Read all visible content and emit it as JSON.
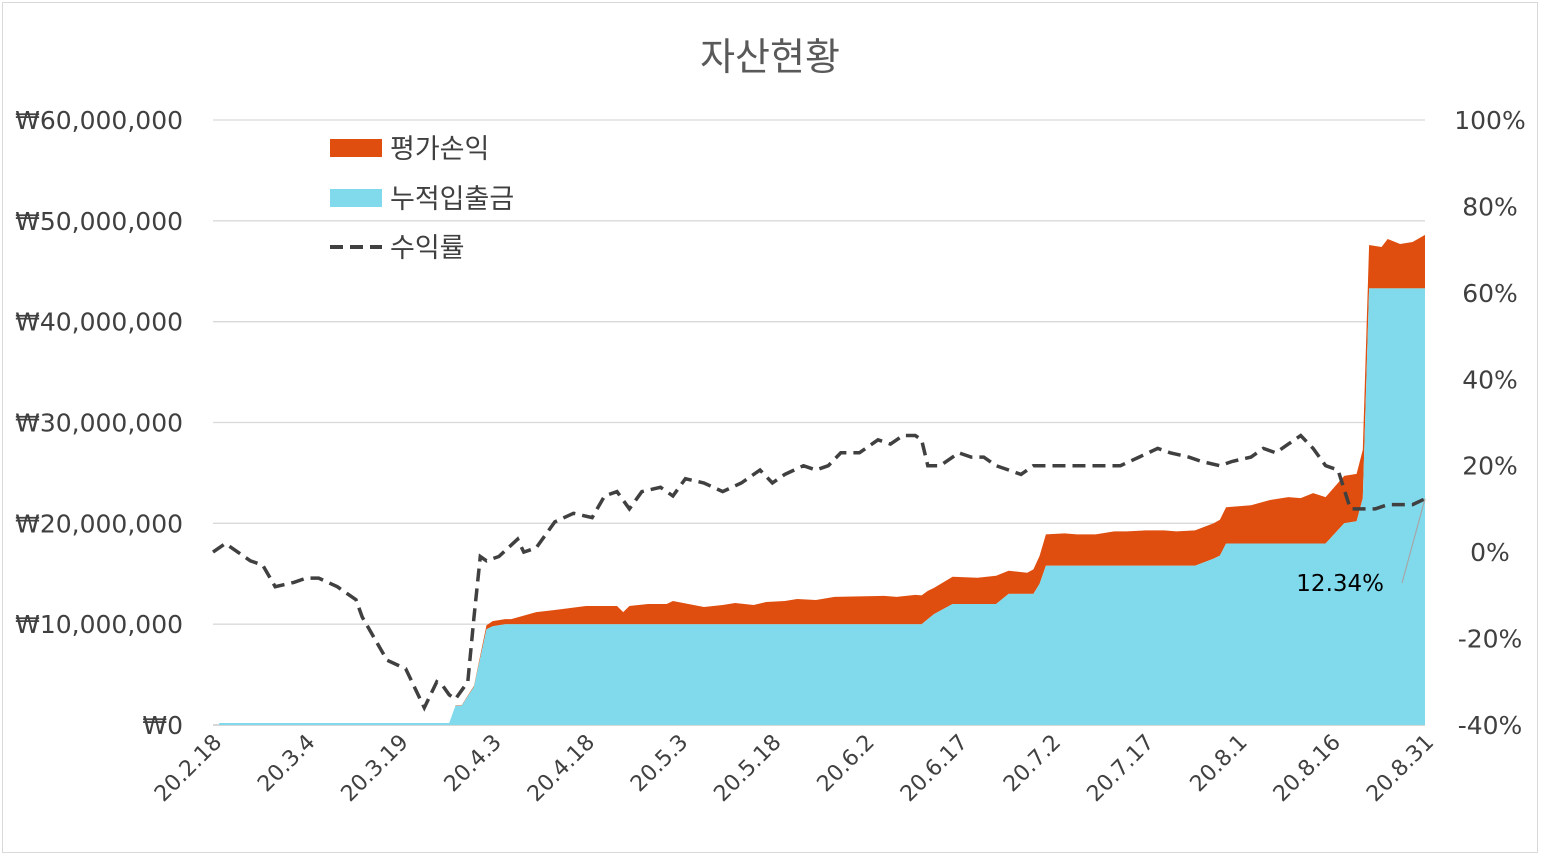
{
  "chart_data": {
    "type": "area",
    "title": "자산현황",
    "colors": {
      "profit": "#E04E0F",
      "deposit": "#80DAEC",
      "return": "#404040"
    },
    "legend": {
      "placement": "top-left",
      "entries": [
        "평가손익",
        "누적입출금",
        "수익률"
      ]
    },
    "y_left": {
      "range": [
        0,
        60000000
      ],
      "ticks": [
        "₩0",
        "₩10,000,000",
        "₩20,000,000",
        "₩30,000,000",
        "₩40,000,000",
        "₩50,000,000",
        "₩60,000,000"
      ]
    },
    "y_right": {
      "range": [
        -40,
        100
      ],
      "ticks": [
        "-40%",
        "-20%",
        "0%",
        "20%",
        "40%",
        "60%",
        "80%",
        "100%"
      ]
    },
    "x_tick_labels": [
      "20.2.18",
      "20.3.4",
      "20.3.19",
      "20.4.3",
      "20.4.18",
      "20.5.3",
      "20.5.18",
      "20.6.2",
      "20.6.17",
      "20.7.2",
      "20.7.17",
      "20.8.1",
      "20.8.16",
      "20.8.31"
    ],
    "x_range": [
      "2020-02-18",
      "2020-08-31"
    ],
    "annotation": {
      "text": "12.34%",
      "date": "2020-08-31",
      "value": 12.34
    },
    "series": [
      {
        "name": "누적입출금",
        "points": [
          [
            "2020-02-19",
            200000
          ],
          [
            "2020-03-27",
            200000
          ],
          [
            "2020-03-28",
            1900000
          ],
          [
            "2020-03-29",
            1900000
          ],
          [
            "2020-03-31",
            3800000
          ],
          [
            "2020-04-02",
            9500000
          ],
          [
            "2020-04-03",
            9800000
          ],
          [
            "2020-04-05",
            10000000
          ],
          [
            "2020-06-11",
            10000000
          ],
          [
            "2020-06-12",
            10500000
          ],
          [
            "2020-06-13",
            11000000
          ],
          [
            "2020-06-16",
            12000000
          ],
          [
            "2020-06-23",
            12000000
          ],
          [
            "2020-06-25",
            13000000
          ],
          [
            "2020-06-29",
            13000000
          ],
          [
            "2020-06-30",
            14000000
          ],
          [
            "2020-07-01",
            15800000
          ],
          [
            "2020-07-25",
            15800000
          ],
          [
            "2020-07-28",
            16500000
          ],
          [
            "2020-07-29",
            16800000
          ],
          [
            "2020-07-30",
            18000000
          ],
          [
            "2020-08-15",
            18000000
          ],
          [
            "2020-08-18",
            20000000
          ],
          [
            "2020-08-20",
            20200000
          ],
          [
            "2020-08-21",
            22500000
          ],
          [
            "2020-08-22",
            43300000
          ],
          [
            "2020-08-31",
            43300000
          ]
        ]
      },
      {
        "name": "평가손익",
        "points": [
          [
            "2020-03-28",
            50000
          ],
          [
            "2020-03-31",
            100000
          ],
          [
            "2020-04-02",
            400000
          ],
          [
            "2020-04-03",
            500000
          ],
          [
            "2020-04-06",
            500000
          ],
          [
            "2020-04-10",
            1200000
          ],
          [
            "2020-04-13",
            1400000
          ],
          [
            "2020-04-18",
            1800000
          ],
          [
            "2020-04-23",
            1800000
          ],
          [
            "2020-04-24",
            1200000
          ],
          [
            "2020-04-25",
            1800000
          ],
          [
            "2020-04-28",
            2000000
          ],
          [
            "2020-05-01",
            2000000
          ],
          [
            "2020-05-02",
            2300000
          ],
          [
            "2020-05-07",
            1700000
          ],
          [
            "2020-05-10",
            1900000
          ],
          [
            "2020-05-12",
            2100000
          ],
          [
            "2020-05-15",
            1900000
          ],
          [
            "2020-05-17",
            2200000
          ],
          [
            "2020-05-20",
            2300000
          ],
          [
            "2020-05-22",
            2500000
          ],
          [
            "2020-05-25",
            2400000
          ],
          [
            "2020-05-28",
            2700000
          ],
          [
            "2020-06-05",
            2800000
          ],
          [
            "2020-06-07",
            2700000
          ],
          [
            "2020-06-10",
            2900000
          ],
          [
            "2020-06-12",
            2800000
          ],
          [
            "2020-06-13",
            2600000
          ],
          [
            "2020-06-16",
            2700000
          ],
          [
            "2020-06-20",
            2600000
          ],
          [
            "2020-06-23",
            2800000
          ],
          [
            "2020-06-25",
            2300000
          ],
          [
            "2020-06-28",
            2100000
          ],
          [
            "2020-07-01",
            3100000
          ],
          [
            "2020-07-04",
            3200000
          ],
          [
            "2020-07-06",
            3100000
          ],
          [
            "2020-07-09",
            3100000
          ],
          [
            "2020-07-12",
            3400000
          ],
          [
            "2020-07-14",
            3400000
          ],
          [
            "2020-07-17",
            3500000
          ],
          [
            "2020-07-20",
            3500000
          ],
          [
            "2020-07-22",
            3400000
          ],
          [
            "2020-07-25",
            3500000
          ],
          [
            "2020-07-28",
            3500000
          ],
          [
            "2020-07-30",
            3600000
          ],
          [
            "2020-08-03",
            3800000
          ],
          [
            "2020-08-06",
            4300000
          ],
          [
            "2020-08-09",
            4600000
          ],
          [
            "2020-08-11",
            4500000
          ],
          [
            "2020-08-13",
            5000000
          ],
          [
            "2020-08-15",
            4600000
          ],
          [
            "2020-08-18",
            4700000
          ],
          [
            "2020-08-20",
            4700000
          ],
          [
            "2020-08-21",
            4800000
          ],
          [
            "2020-08-22",
            4300000
          ],
          [
            "2020-08-24",
            4100000
          ],
          [
            "2020-08-25",
            4900000
          ],
          [
            "2020-08-27",
            4400000
          ],
          [
            "2020-08-29",
            4600000
          ],
          [
            "2020-08-31",
            5300000
          ]
        ]
      },
      {
        "name": "수익률",
        "points": [
          [
            "2020-02-18",
            0
          ],
          [
            "2020-02-20",
            2
          ],
          [
            "2020-02-24",
            -2
          ],
          [
            "2020-02-26",
            -3
          ],
          [
            "2020-02-28",
            -8
          ],
          [
            "2020-03-02",
            -7
          ],
          [
            "2020-03-04",
            -6
          ],
          [
            "2020-03-06",
            -6
          ],
          [
            "2020-03-09",
            -8
          ],
          [
            "2020-03-12",
            -11
          ],
          [
            "2020-03-13",
            -15
          ],
          [
            "2020-03-15",
            -20
          ],
          [
            "2020-03-17",
            -25
          ],
          [
            "2020-03-20",
            -27
          ],
          [
            "2020-03-23",
            -36
          ],
          [
            "2020-03-25",
            -30
          ],
          [
            "2020-03-26",
            -31
          ],
          [
            "2020-03-27",
            -33
          ],
          [
            "2020-03-28",
            -34
          ],
          [
            "2020-03-30",
            -30
          ],
          [
            "2020-03-31",
            -15
          ],
          [
            "2020-04-01",
            -1
          ],
          [
            "2020-04-02",
            -2
          ],
          [
            "2020-04-04",
            -1
          ],
          [
            "2020-04-07",
            3
          ],
          [
            "2020-04-08",
            0
          ],
          [
            "2020-04-10",
            1
          ],
          [
            "2020-04-13",
            7
          ],
          [
            "2020-04-16",
            9
          ],
          [
            "2020-04-19",
            8
          ],
          [
            "2020-04-21",
            13
          ],
          [
            "2020-04-23",
            14
          ],
          [
            "2020-04-25",
            10
          ],
          [
            "2020-04-27",
            14
          ],
          [
            "2020-04-30",
            15
          ],
          [
            "2020-05-02",
            13
          ],
          [
            "2020-05-04",
            17
          ],
          [
            "2020-05-07",
            16
          ],
          [
            "2020-05-10",
            14
          ],
          [
            "2020-05-13",
            16
          ],
          [
            "2020-05-16",
            19
          ],
          [
            "2020-05-18",
            16
          ],
          [
            "2020-05-20",
            18
          ],
          [
            "2020-05-23",
            20
          ],
          [
            "2020-05-25",
            19
          ],
          [
            "2020-05-27",
            20
          ],
          [
            "2020-05-29",
            23
          ],
          [
            "2020-06-01",
            23
          ],
          [
            "2020-06-04",
            26
          ],
          [
            "2020-06-06",
            25
          ],
          [
            "2020-06-08",
            27
          ],
          [
            "2020-06-10",
            27
          ],
          [
            "2020-06-11",
            26
          ],
          [
            "2020-06-12",
            20
          ],
          [
            "2020-06-14",
            20
          ],
          [
            "2020-06-17",
            23
          ],
          [
            "2020-06-19",
            22
          ],
          [
            "2020-06-21",
            22
          ],
          [
            "2020-06-23",
            20
          ],
          [
            "2020-06-25",
            19
          ],
          [
            "2020-06-27",
            18
          ],
          [
            "2020-06-29",
            20
          ],
          [
            "2020-07-02",
            20
          ],
          [
            "2020-07-05",
            20
          ],
          [
            "2020-07-07",
            20
          ],
          [
            "2020-07-10",
            20
          ],
          [
            "2020-07-13",
            20
          ],
          [
            "2020-07-16",
            22
          ],
          [
            "2020-07-19",
            24
          ],
          [
            "2020-07-21",
            23
          ],
          [
            "2020-07-24",
            22
          ],
          [
            "2020-07-26",
            21
          ],
          [
            "2020-07-29",
            20
          ],
          [
            "2020-07-31",
            21
          ],
          [
            "2020-08-03",
            22
          ],
          [
            "2020-08-05",
            24
          ],
          [
            "2020-08-07",
            23
          ],
          [
            "2020-08-09",
            25
          ],
          [
            "2020-08-11",
            27
          ],
          [
            "2020-08-13",
            24
          ],
          [
            "2020-08-15",
            20
          ],
          [
            "2020-08-17",
            19
          ],
          [
            "2020-08-19",
            10
          ],
          [
            "2020-08-21",
            10
          ],
          [
            "2020-08-23",
            10
          ],
          [
            "2020-08-25",
            11
          ],
          [
            "2020-08-27",
            11
          ],
          [
            "2020-08-29",
            11
          ],
          [
            "2020-08-31",
            12.34
          ]
        ]
      }
    ]
  }
}
